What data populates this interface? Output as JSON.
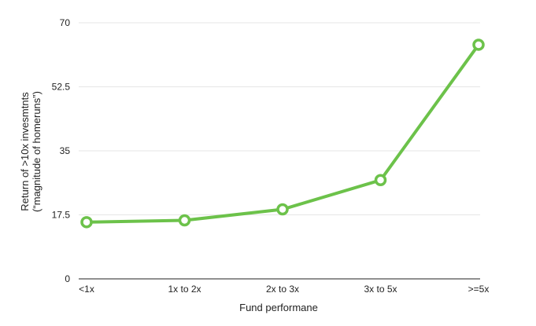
{
  "chart_data": {
    "type": "line",
    "title": "",
    "xlabel": "Fund performane",
    "ylabel_line1": "Return of >10x invesmtnts",
    "ylabel_line2": "(“magnitude of homeruns”)",
    "categories": [
      "<1x",
      "1x to 2x",
      "2x to 3x",
      "3x to 5x",
      ">=5x"
    ],
    "series": [
      {
        "values": [
          15.5,
          16,
          19,
          27,
          64
        ]
      }
    ],
    "ylim": [
      0,
      70
    ],
    "yticks": [
      0,
      17.5,
      35,
      52.5,
      70
    ],
    "grid": true,
    "legend": "none",
    "colors": {
      "line": "#6cc24a",
      "grid": "#e6e6e6",
      "axis": "#222222"
    }
  }
}
